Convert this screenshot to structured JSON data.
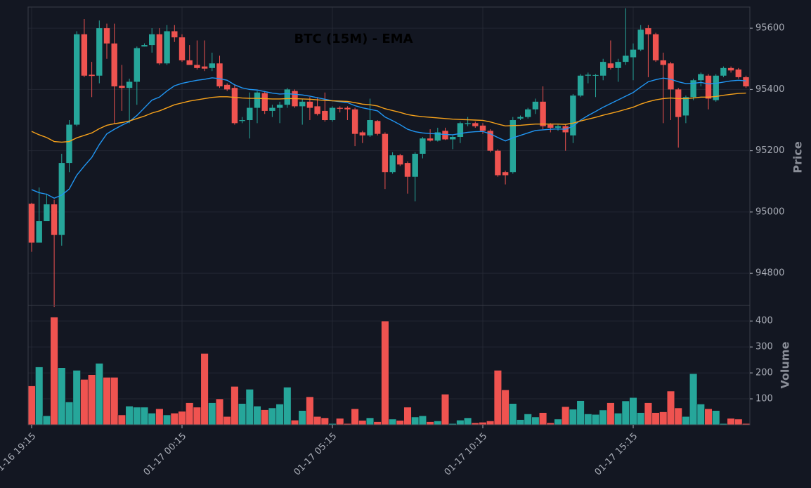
{
  "chart_data": [
    {
      "type": "candlestick",
      "title": "BTC (15M) - EMA",
      "ylabel": "Price",
      "ylim": [
        94695,
        95669
      ],
      "yticks": [
        94800,
        95000,
        95200,
        95400,
        95600
      ],
      "grid": true,
      "up_color": "#26a69a",
      "down_color": "#ef5350",
      "open": [
        95027,
        94900,
        94970,
        95025,
        94925,
        95160,
        95285,
        95580,
        95448,
        95445,
        95600,
        95550,
        95412,
        95405,
        95425,
        95540,
        95545,
        95580,
        95485,
        95590,
        95570,
        95495,
        95480,
        95475,
        95470,
        95485,
        95415,
        95405,
        95297,
        95300,
        95340,
        95388,
        95330,
        95340,
        95350,
        95395,
        95345,
        95360,
        95345,
        95330,
        95300,
        95340,
        95340,
        95335,
        95260,
        95250,
        95297,
        95255,
        95130,
        95185,
        95160,
        95115,
        95190,
        95240,
        95233,
        95265,
        95237,
        95245,
        95287,
        95290,
        95282,
        95265,
        95200,
        95130,
        95130,
        95305,
        95310,
        95335,
        95360,
        95285,
        95275,
        95280,
        95250,
        95380,
        95445,
        95445,
        95445,
        95485,
        95470,
        95490,
        95505,
        95530,
        95600,
        95580,
        95495,
        95485,
        95400,
        95315,
        95375,
        95430,
        95445,
        95365,
        95445,
        95470,
        95465,
        95440
      ],
      "high": [
        95030,
        95080,
        95060,
        95040,
        95190,
        95300,
        95590,
        95630,
        95490,
        95625,
        95615,
        95615,
        95480,
        95435,
        95540,
        95550,
        95600,
        95600,
        95610,
        95610,
        95580,
        95545,
        95560,
        95560,
        95520,
        95510,
        95420,
        95415,
        95310,
        95390,
        95395,
        95395,
        95350,
        95360,
        95405,
        95400,
        95370,
        95375,
        95375,
        95390,
        95345,
        95345,
        95345,
        95340,
        95265,
        95370,
        95300,
        95260,
        95195,
        95190,
        95165,
        95195,
        95245,
        95270,
        95275,
        95275,
        95250,
        95295,
        95310,
        95295,
        95290,
        95270,
        95205,
        95135,
        95310,
        95315,
        95340,
        95370,
        95410,
        95290,
        95285,
        95285,
        95385,
        95450,
        95455,
        95450,
        95500,
        95560,
        95500,
        95665,
        95550,
        95610,
        95610,
        95585,
        95520,
        95490,
        95405,
        95380,
        95435,
        95455,
        95450,
        95450,
        95475,
        95475,
        95470,
        95445
      ],
      "low": [
        94870,
        94900,
        94970,
        94690,
        94890,
        95130,
        95280,
        95440,
        95375,
        95420,
        95500,
        95290,
        95330,
        95290,
        95350,
        95540,
        95520,
        95480,
        95480,
        95555,
        95490,
        95480,
        95465,
        95460,
        95460,
        95405,
        95395,
        95285,
        95290,
        95240,
        95290,
        95320,
        95310,
        95290,
        95340,
        95340,
        95285,
        95300,
        95315,
        95295,
        95295,
        95325,
        95300,
        95215,
        95225,
        95245,
        95250,
        95075,
        95125,
        95150,
        95060,
        95035,
        95175,
        95230,
        95230,
        95235,
        95205,
        95225,
        95280,
        95275,
        95255,
        95195,
        95115,
        95090,
        95125,
        95300,
        95305,
        95320,
        95270,
        95260,
        95265,
        95200,
        95225,
        95375,
        95420,
        95375,
        95430,
        95465,
        95425,
        95480,
        95430,
        95525,
        95440,
        95490,
        95290,
        95300,
        95210,
        95290,
        95365,
        95410,
        95335,
        95360,
        95440,
        95455,
        95435,
        95405
      ],
      "close": [
        94900,
        94970,
        95025,
        94925,
        95160,
        95285,
        95580,
        95445,
        95444,
        95600,
        95550,
        95410,
        95405,
        95425,
        95535,
        95545,
        95580,
        95485,
        95590,
        95570,
        95495,
        95480,
        95470,
        95468,
        95485,
        95410,
        95400,
        95290,
        95300,
        95340,
        95390,
        95330,
        95340,
        95350,
        95400,
        95345,
        95360,
        95340,
        95320,
        95300,
        95340,
        95337,
        95335,
        95255,
        95250,
        95300,
        95255,
        95130,
        95185,
        95155,
        95115,
        95190,
        95240,
        95233,
        95260,
        95237,
        95245,
        95290,
        95290,
        95280,
        95265,
        95200,
        95120,
        95120,
        95300,
        95310,
        95335,
        95360,
        95280,
        95275,
        95280,
        95260,
        95380,
        95445,
        95448,
        95447,
        95490,
        95470,
        95490,
        95510,
        95530,
        95595,
        95580,
        95495,
        95480,
        95400,
        95310,
        95375,
        95430,
        95450,
        95370,
        95445,
        95470,
        95462,
        95440,
        95410
      ],
      "lines": [
        {
          "color": "#2196f3",
          "values": [
            95073,
            95063,
            95058,
            95045,
            95055,
            95075,
            95120,
            95150,
            95178,
            95220,
            95255,
            95270,
            95283,
            95295,
            95315,
            95340,
            95365,
            95375,
            95395,
            95412,
            95420,
            95425,
            95430,
            95433,
            95438,
            95435,
            95430,
            95415,
            95405,
            95400,
            95398,
            95393,
            95388,
            95385,
            95386,
            95384,
            95382,
            95378,
            95373,
            95368,
            95363,
            95360,
            95357,
            95347,
            95340,
            95335,
            95330,
            95310,
            95298,
            95285,
            95270,
            95262,
            95258,
            95256,
            95255,
            95253,
            95252,
            95256,
            95260,
            95262,
            95263,
            95255,
            95243,
            95232,
            95242,
            95250,
            95258,
            95266,
            95268,
            95270,
            95271,
            95270,
            95280,
            95300,
            95315,
            95328,
            95342,
            95354,
            95366,
            95378,
            95390,
            95408,
            95425,
            95432,
            95437,
            95433,
            95425,
            95419,
            95420,
            95423,
            95418,
            95420,
            95424,
            95428,
            95430,
            95428
          ]
        },
        {
          "color": "#f7a21b",
          "values": [
            95263,
            95252,
            95243,
            95230,
            95228,
            95230,
            95242,
            95250,
            95258,
            95272,
            95283,
            95288,
            95292,
            95297,
            95305,
            95313,
            95323,
            95330,
            95340,
            95350,
            95356,
            95362,
            95366,
            95370,
            95374,
            95376,
            95376,
            95374,
            95372,
            95371,
            95371,
            95370,
            95369,
            95369,
            95370,
            95370,
            95369,
            95368,
            95366,
            95364,
            95363,
            95362,
            95361,
            95357,
            95352,
            95350,
            95346,
            95337,
            95331,
            95325,
            95318,
            95314,
            95311,
            95309,
            95307,
            95305,
            95303,
            95302,
            95301,
            95300,
            95299,
            95294,
            95287,
            95281,
            95282,
            95283,
            95285,
            95287,
            95287,
            95287,
            95287,
            95286,
            95290,
            95297,
            95303,
            95309,
            95316,
            95322,
            95328,
            95335,
            95342,
            95352,
            95360,
            95366,
            95370,
            95372,
            95370,
            95370,
            95372,
            95375,
            95375,
            95377,
            95381,
            95384,
            95387,
            95388
          ]
        }
      ]
    },
    {
      "type": "bar",
      "ylabel": "Volume",
      "ylim": [
        0,
        460
      ],
      "yticks": [
        100,
        200,
        300,
        400
      ],
      "grid": true,
      "categories": [
        "01-16 19:15",
        null,
        null,
        null,
        null,
        null,
        null,
        null,
        null,
        null,
        null,
        null,
        null,
        null,
        null,
        null,
        null,
        null,
        null,
        null,
        "01-17 00:15",
        null,
        null,
        null,
        null,
        null,
        null,
        null,
        null,
        null,
        null,
        null,
        null,
        null,
        null,
        null,
        null,
        null,
        null,
        null,
        "01-17 05:15",
        null,
        null,
        null,
        null,
        null,
        null,
        null,
        null,
        null,
        null,
        null,
        null,
        null,
        null,
        null,
        null,
        null,
        null,
        null,
        "01-17 10:15",
        null,
        null,
        null,
        null,
        null,
        null,
        null,
        null,
        null,
        null,
        null,
        null,
        null,
        null,
        null,
        null,
        null,
        null,
        null,
        "01-17 15:15",
        null,
        null,
        null,
        null,
        null,
        null,
        null,
        null,
        null,
        null,
        null,
        null,
        null,
        null,
        null
      ],
      "values": [
        150,
        223,
        35,
        415,
        220,
        88,
        210,
        175,
        193,
        237,
        183,
        183,
        38,
        72,
        68,
        68,
        45,
        62,
        38,
        45,
        52,
        85,
        68,
        275,
        85,
        100,
        32,
        148,
        82,
        137,
        72,
        58,
        65,
        80,
        145,
        18,
        55,
        108,
        32,
        27,
        5,
        25,
        5,
        62,
        17,
        27,
        12,
        400,
        22,
        17,
        68,
        30,
        35,
        12,
        15,
        118,
        5,
        18,
        27,
        8,
        10,
        15,
        210,
        135,
        82,
        20,
        42,
        30,
        47,
        8,
        22,
        70,
        60,
        93,
        42,
        40,
        57,
        85,
        45,
        92,
        105,
        47,
        85,
        47,
        50,
        130,
        65,
        32,
        197,
        80,
        62,
        55,
        5,
        25,
        22,
        5
      ]
    }
  ]
}
